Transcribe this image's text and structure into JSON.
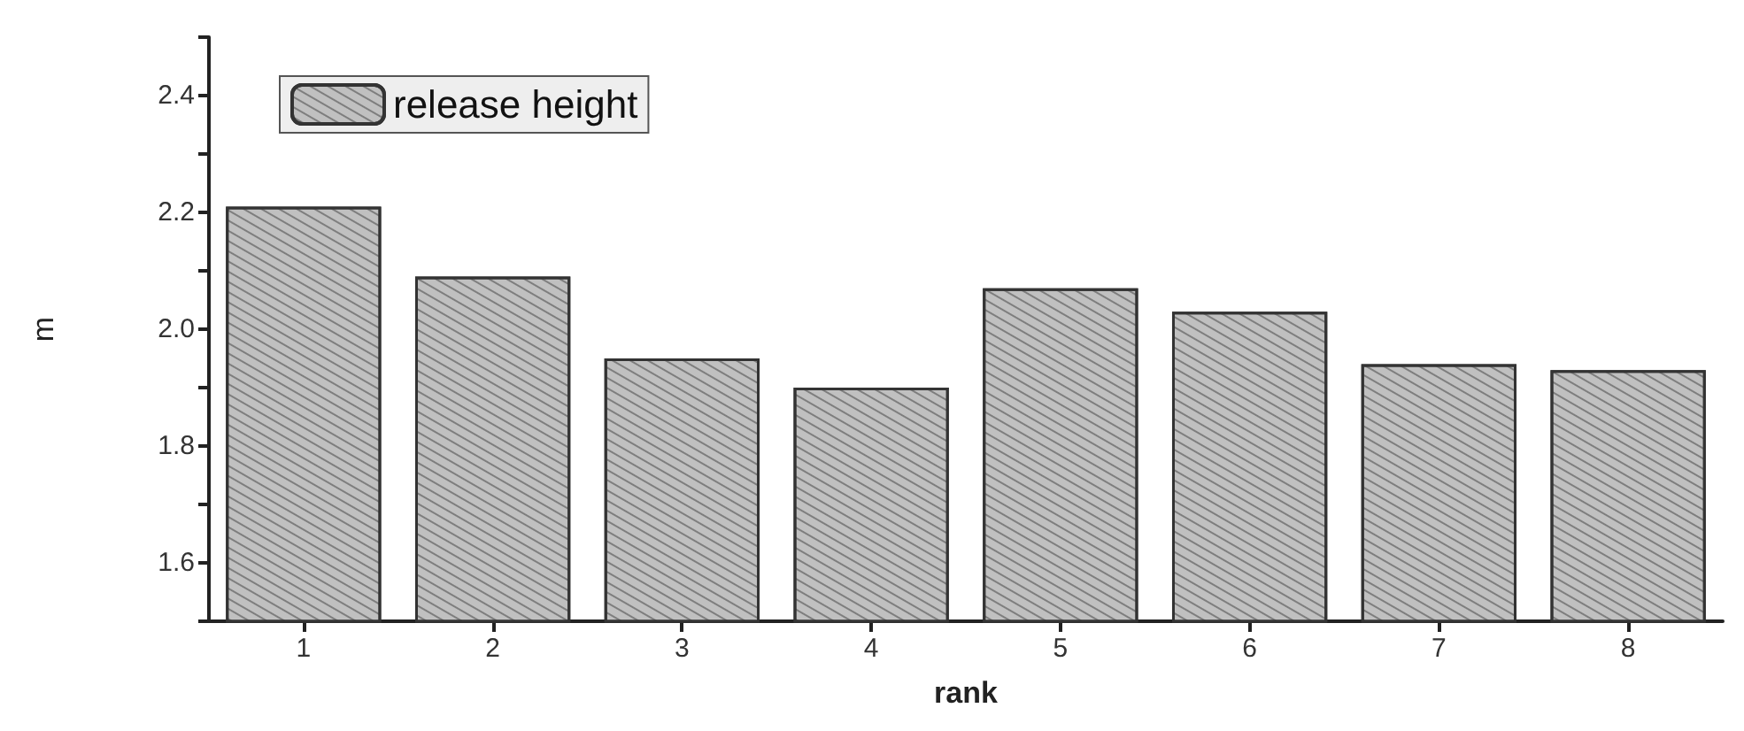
{
  "chart_data": {
    "type": "bar",
    "xlabel": "rank",
    "ylabel": "m",
    "categories": [
      "1",
      "2",
      "3",
      "4",
      "5",
      "6",
      "7",
      "8"
    ],
    "series": [
      {
        "name": "release height",
        "color": "#c0c0c0",
        "values": [
          2.21,
          2.09,
          1.95,
          1.9,
          2.07,
          2.03,
          1.94,
          1.93
        ]
      }
    ],
    "ylim": [
      1.5,
      2.5
    ],
    "yticks": [
      {
        "value": 1.5,
        "label": null
      },
      1.6,
      {
        "value": 1.7,
        "label": null
      },
      1.8,
      {
        "value": 1.9,
        "label": null
      },
      {
        "value": 2.0,
        "label": "2.0"
      },
      {
        "value": 2.1,
        "label": null
      },
      2.2,
      {
        "value": 2.3,
        "label": null
      },
      2.4,
      {
        "value": 2.5,
        "label": null
      }
    ],
    "grid": false,
    "legend": "top left"
  }
}
